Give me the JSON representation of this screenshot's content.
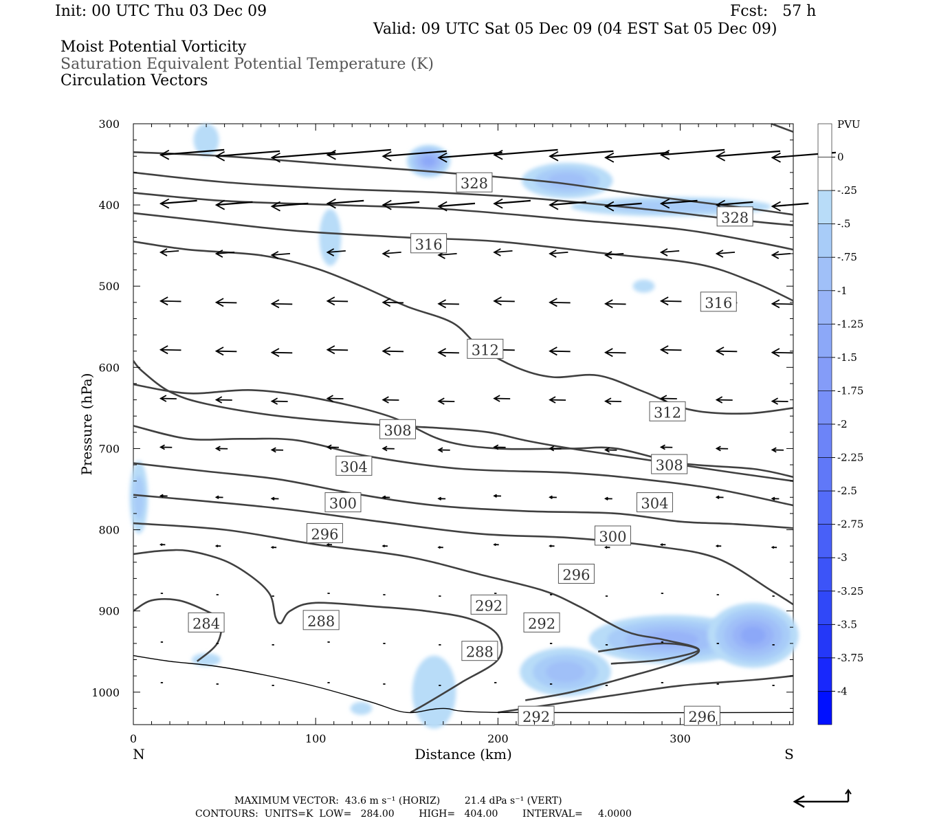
{
  "header": {
    "init": "Init: 00 UTC Thu 03 Dec 09",
    "fcst": "Fcst:   57 h",
    "valid": "Valid: 09 UTC Sat 05 Dec 09 (04 EST Sat 05 Dec 09)",
    "field1": "Moist Potential Vorticity",
    "field2": "Saturation Equivalent Potential Temperature (K)",
    "field3": "Circulation Vectors"
  },
  "footer": {
    "max_vector": "MAXIMUM VECTOR:  43.6 m s⁻¹ (HORIZ)        21.4 dPa s⁻¹ (VERT)",
    "contours": "CONTOURS:  UNITS=K  LOW=   284.00        HIGH=   404.00        INTERVAL=     4.0000"
  },
  "colors": {
    "contour": "#404040",
    "vector": "#000000",
    "pv_light": "#b8dcf8",
    "pv_strong": "#0000ff"
  },
  "chart_data": {
    "type": "contour",
    "xlabel": "Distance (km)",
    "ylabel": "Pressure (hPa)",
    "xlim": [
      0,
      362
    ],
    "ylim": [
      300,
      1040
    ],
    "x_ticks": [
      0,
      100,
      200,
      300
    ],
    "y_ticks": [
      300,
      400,
      500,
      600,
      700,
      800,
      900,
      1000
    ],
    "x_end_labels": {
      "left": "N",
      "right": "S"
    },
    "colorbar": {
      "title": "PVU",
      "levels": [
        "0",
        "-.25",
        "-.5",
        "-.75",
        "-1",
        "-1.25",
        "-1.5",
        "-1.75",
        "-2",
        "-2.25",
        "-2.5",
        "-2.75",
        "-3",
        "-3.25",
        "-3.5",
        "-3.75",
        "-4"
      ],
      "colors": [
        "#ffffff",
        "#ffffff",
        "#b8dcf8",
        "#a8ccf8",
        "#a0c0f8",
        "#98b4f8",
        "#8ca8f8",
        "#849cf8",
        "#7890f8",
        "#6c84f8",
        "#6078f8",
        "#546cf8",
        "#4860f8",
        "#3c54f8",
        "#3048f8",
        "#2438f8",
        "#1828fc",
        "#0010ff"
      ]
    },
    "theta_es_contours": [
      {
        "level": 284,
        "points": [
          [
            0,
            900
          ],
          [
            10,
            887
          ],
          [
            25,
            887
          ],
          [
            40,
            900
          ],
          [
            48,
            912
          ],
          [
            46,
            940
          ],
          [
            35,
            962
          ]
        ]
      },
      {
        "level": 288,
        "points": [
          [
            0,
            830
          ],
          [
            15,
            826
          ],
          [
            30,
            826
          ],
          [
            50,
            838
          ],
          [
            65,
            858
          ],
          [
            75,
            880
          ],
          [
            78,
            908
          ],
          [
            81,
            915
          ],
          [
            86,
            900
          ],
          [
            100,
            890
          ],
          [
            135,
            895
          ],
          [
            160,
            900
          ],
          [
            185,
            910
          ],
          [
            200,
            930
          ],
          [
            200,
            960
          ],
          [
            180,
            988
          ],
          [
            160,
            1015
          ],
          [
            152,
            1025
          ]
        ]
      },
      {
        "level": 292,
        "points": [
          [
            0,
            792
          ],
          [
            50,
            800
          ],
          [
            100,
            818
          ],
          [
            150,
            833
          ],
          [
            190,
            855
          ],
          [
            225,
            875
          ],
          [
            245,
            895
          ],
          [
            270,
            925
          ],
          [
            290,
            935
          ],
          [
            310,
            947
          ],
          [
            300,
            962
          ],
          [
            270,
            982
          ],
          [
            240,
            1000
          ],
          [
            215,
            1010
          ]
        ]
      },
      {
        "level": 296,
        "points": [
          [
            0,
            757
          ],
          [
            40,
            765
          ],
          [
            85,
            775
          ],
          [
            135,
            790
          ],
          [
            190,
            805
          ],
          [
            240,
            810
          ],
          [
            285,
            820
          ],
          [
            320,
            835
          ],
          [
            350,
            875
          ],
          [
            362,
            892
          ]
        ]
      },
      {
        "level": 296,
        "points": [
          [
            200,
            1025
          ],
          [
            260,
            1005
          ],
          [
            300,
            992
          ],
          [
            340,
            985
          ],
          [
            362,
            980
          ]
        ]
      },
      {
        "level": 300,
        "points": [
          [
            0,
            718
          ],
          [
            40,
            728
          ],
          [
            80,
            738
          ],
          [
            120,
            755
          ],
          [
            165,
            770
          ],
          [
            215,
            777
          ],
          [
            265,
            780
          ],
          [
            300,
            790
          ],
          [
            330,
            793
          ],
          [
            362,
            798
          ]
        ]
      },
      {
        "level": 304,
        "points": [
          [
            0,
            672
          ],
          [
            30,
            688
          ],
          [
            60,
            688
          ],
          [
            90,
            690
          ],
          [
            130,
            710
          ],
          [
            180,
            725
          ],
          [
            240,
            730
          ],
          [
            280,
            738
          ],
          [
            320,
            750
          ],
          [
            362,
            770
          ]
        ]
      },
      {
        "level": 308,
        "points": [
          [
            0,
            621
          ],
          [
            30,
            632
          ],
          [
            65,
            628
          ],
          [
            100,
            638
          ],
          [
            140,
            660
          ],
          [
            170,
            690
          ],
          [
            200,
            700
          ],
          [
            240,
            700
          ],
          [
            265,
            700
          ],
          [
            300,
            718
          ],
          [
            340,
            725
          ],
          [
            362,
            735
          ]
        ]
      },
      {
        "level": 312,
        "points": [
          [
            0,
            592
          ],
          [
            5,
            605
          ],
          [
            20,
            630
          ],
          [
            40,
            645
          ],
          [
            80,
            660
          ],
          [
            130,
            670
          ],
          [
            170,
            675
          ],
          [
            195,
            680
          ],
          [
            215,
            690
          ],
          [
            240,
            700
          ],
          [
            270,
            710
          ],
          [
            300,
            720
          ],
          [
            330,
            730
          ],
          [
            362,
            740
          ]
        ]
      },
      {
        "level": 312,
        "points": [
          [
            0,
            445
          ],
          [
            30,
            455
          ],
          [
            70,
            462
          ],
          [
            100,
            478
          ],
          [
            125,
            500
          ],
          [
            150,
            525
          ],
          [
            175,
            545
          ],
          [
            190,
            575
          ],
          [
            210,
            600
          ],
          [
            230,
            612
          ],
          [
            255,
            610
          ],
          [
            280,
            630
          ],
          [
            305,
            652
          ],
          [
            335,
            657
          ],
          [
            362,
            650
          ]
        ]
      },
      {
        "level": 316,
        "points": [
          [
            0,
            410
          ],
          [
            40,
            420
          ],
          [
            90,
            432
          ],
          [
            150,
            440
          ],
          [
            200,
            445
          ],
          [
            260,
            460
          ],
          [
            310,
            473
          ],
          [
            340,
            495
          ],
          [
            362,
            518
          ]
        ]
      },
      {
        "level": 320,
        "points": [
          [
            0,
            385
          ],
          [
            50,
            395
          ],
          [
            110,
            400
          ],
          [
            170,
            405
          ],
          [
            240,
            418
          ],
          [
            300,
            430
          ],
          [
            340,
            445
          ],
          [
            362,
            455
          ]
        ]
      },
      {
        "level": 324,
        "points": [
          [
            0,
            360
          ],
          [
            50,
            372
          ],
          [
            110,
            380
          ],
          [
            170,
            385
          ],
          [
            220,
            392
          ],
          [
            280,
            405
          ],
          [
            330,
            418
          ],
          [
            362,
            425
          ]
        ]
      },
      {
        "level": 328,
        "points": [
          [
            0,
            335
          ],
          [
            50,
            340
          ],
          [
            110,
            350
          ],
          [
            170,
            360
          ],
          [
            230,
            372
          ],
          [
            280,
            388
          ],
          [
            330,
            402
          ],
          [
            362,
            412
          ]
        ]
      },
      {
        "level": 332,
        "points": [
          [
            350,
            300
          ],
          [
            362,
            310
          ]
        ]
      },
      {
        "level": 288,
        "points": [
          [
            255,
            950
          ],
          [
            290,
            940
          ],
          [
            310,
            948
          ],
          [
            290,
            960
          ],
          [
            262,
            965
          ]
        ]
      }
    ],
    "contour_labels": [
      {
        "text": "328",
        "x": 187,
        "y": 373
      },
      {
        "text": "328",
        "x": 330,
        "y": 415
      },
      {
        "text": "316",
        "x": 162,
        "y": 448
      },
      {
        "text": "316",
        "x": 321,
        "y": 520
      },
      {
        "text": "312",
        "x": 193,
        "y": 578
      },
      {
        "text": "312",
        "x": 293,
        "y": 655
      },
      {
        "text": "308",
        "x": 145,
        "y": 677
      },
      {
        "text": "304",
        "x": 121,
        "y": 722
      },
      {
        "text": "308",
        "x": 294,
        "y": 720
      },
      {
        "text": "300",
        "x": 115,
        "y": 767
      },
      {
        "text": "304",
        "x": 286,
        "y": 767
      },
      {
        "text": "296",
        "x": 105,
        "y": 805
      },
      {
        "text": "300",
        "x": 263,
        "y": 808
      },
      {
        "text": "296",
        "x": 243,
        "y": 855
      },
      {
        "text": "292",
        "x": 195,
        "y": 893
      },
      {
        "text": "284",
        "x": 40,
        "y": 915
      },
      {
        "text": "288",
        "x": 103,
        "y": 912
      },
      {
        "text": "292",
        "x": 224,
        "y": 915
      },
      {
        "text": "288",
        "x": 190,
        "y": 950
      },
      {
        "text": "292",
        "x": 221,
        "y": 1030
      },
      {
        "text": "296",
        "x": 312,
        "y": 1030
      }
    ],
    "terrain_surface": [
      [
        0,
        955
      ],
      [
        20,
        962
      ],
      [
        45,
        968
      ],
      [
        70,
        978
      ],
      [
        100,
        993
      ],
      [
        130,
        1012
      ],
      [
        150,
        1025
      ],
      [
        170,
        1020
      ],
      [
        200,
        1025
      ],
      [
        362,
        1025
      ]
    ],
    "pv_regions": [
      {
        "x": 162,
        "y": 346,
        "rx": 12,
        "ry": 20,
        "level": -1.25
      },
      {
        "x": 238,
        "y": 370,
        "rx": 25,
        "ry": 22,
        "level": -0.75
      },
      {
        "x": 295,
        "y": 402,
        "rx": 55,
        "ry": 12,
        "level": -0.5
      },
      {
        "x": 40,
        "y": 320,
        "rx": 7,
        "ry": 20,
        "level": -0.25
      },
      {
        "x": 108,
        "y": 440,
        "rx": 6,
        "ry": 35,
        "level": -0.25
      },
      {
        "x": 295,
        "y": 935,
        "rx": 45,
        "ry": 30,
        "level": -1.0
      },
      {
        "x": 340,
        "y": 930,
        "rx": 25,
        "ry": 40,
        "level": -1.25
      },
      {
        "x": 237,
        "y": 975,
        "rx": 25,
        "ry": 30,
        "level": -0.75
      },
      {
        "x": 165,
        "y": 1000,
        "rx": 12,
        "ry": 45,
        "level": -0.25
      },
      {
        "x": 3,
        "y": 760,
        "rx": 5,
        "ry": 45,
        "level": -0.5
      },
      {
        "x": 40,
        "y": 960,
        "rx": 8,
        "ry": 8,
        "level": -0.25
      },
      {
        "x": 125,
        "y": 1020,
        "rx": 6,
        "ry": 8,
        "level": -0.25
      },
      {
        "x": 280,
        "y": 500,
        "rx": 6,
        "ry": 8,
        "level": -0.25
      }
    ],
    "vectors": [
      {
        "p": 340,
        "dx": -4,
        "speed": 28
      },
      {
        "p": 400,
        "dx": -3,
        "speed": 16
      },
      {
        "p": 460,
        "dx": -2,
        "speed": 8
      },
      {
        "p": 520,
        "dx": -2,
        "speed": 9
      },
      {
        "p": 580,
        "dx": -2,
        "speed": 9
      },
      {
        "p": 640,
        "dx": -2,
        "speed": 7
      },
      {
        "p": 700,
        "dx": -2,
        "speed": 5
      },
      {
        "p": 760,
        "dx": -1,
        "speed": 3
      },
      {
        "p": 820,
        "dx": -1,
        "speed": 2
      },
      {
        "p": 880,
        "dx": -1,
        "speed": 1
      },
      {
        "p": 940,
        "dx": -1,
        "speed": 1
      },
      {
        "p": 990,
        "dx": -1,
        "speed": 1
      }
    ]
  }
}
